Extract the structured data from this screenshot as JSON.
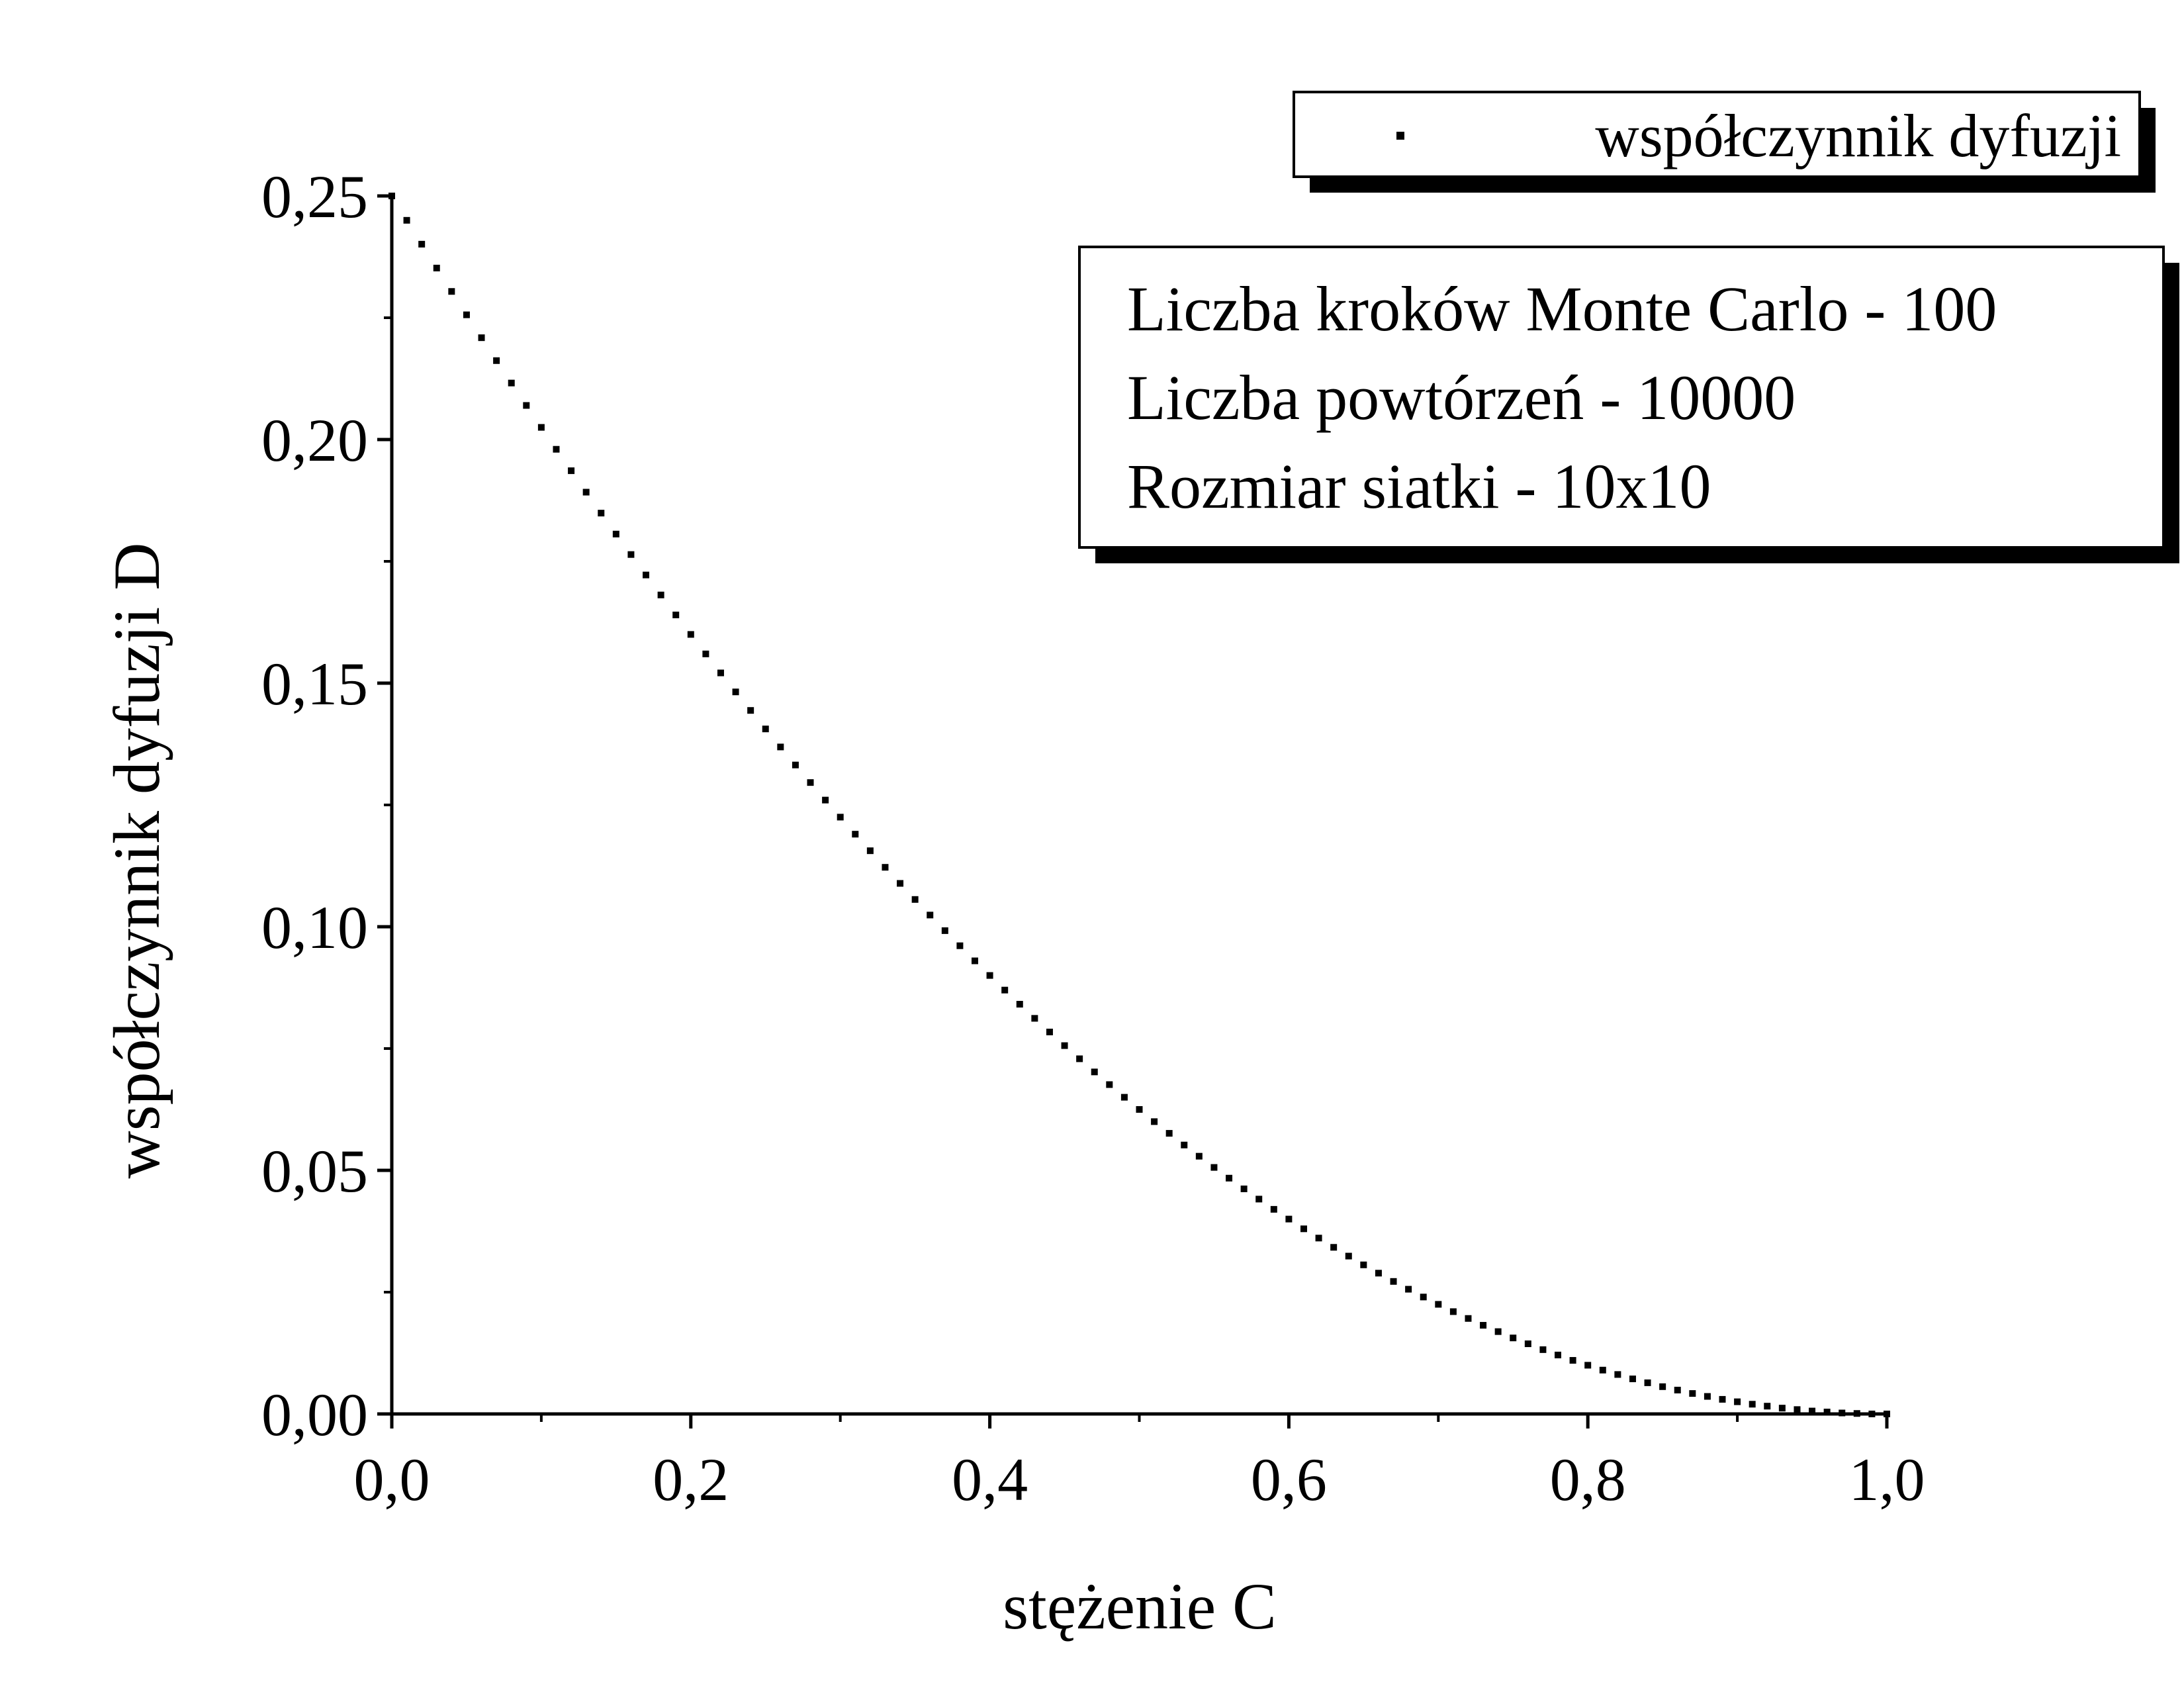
{
  "chart_data": {
    "type": "scatter",
    "xlabel": "stężenie C",
    "ylabel": "współczynnik dyfuzji D",
    "xlim": [
      0.0,
      1.0
    ],
    "ylim": [
      0.0,
      0.25
    ],
    "x_ticks": [
      "0,0",
      "0,2",
      "0,4",
      "0,6",
      "0,8",
      "1,0"
    ],
    "y_ticks": [
      "0,00",
      "0,05",
      "0,10",
      "0,15",
      "0,20",
      "0,25"
    ],
    "grid": false,
    "legend": {
      "position": "top-right",
      "entries": [
        "współczynnik dyfuzji"
      ]
    },
    "annotation_lines": [
      "Liczba kroków Monte Carlo - 100",
      "Liczba powtórzeń - 10000",
      "Rozmiar siatki - 10x10"
    ],
    "series": [
      {
        "name": "współczynnik dyfuzji",
        "marker": "square",
        "color": "#000000",
        "x": [
          0.0,
          0.01,
          0.02,
          0.03,
          0.04,
          0.05,
          0.06,
          0.07,
          0.08,
          0.09,
          0.1,
          0.11,
          0.12,
          0.13,
          0.14,
          0.15,
          0.16,
          0.17,
          0.18,
          0.19,
          0.2,
          0.21,
          0.22,
          0.23,
          0.24,
          0.25,
          0.26,
          0.27,
          0.28,
          0.29,
          0.3,
          0.31,
          0.32,
          0.33,
          0.34,
          0.35,
          0.36,
          0.37,
          0.38,
          0.39,
          0.4,
          0.41,
          0.42,
          0.43,
          0.44,
          0.45,
          0.46,
          0.47,
          0.48,
          0.49,
          0.5,
          0.51,
          0.52,
          0.53,
          0.54,
          0.55,
          0.56,
          0.57,
          0.58,
          0.59,
          0.6,
          0.61,
          0.62,
          0.63,
          0.64,
          0.65,
          0.66,
          0.67,
          0.68,
          0.69,
          0.7,
          0.71,
          0.72,
          0.73,
          0.74,
          0.75,
          0.76,
          0.77,
          0.78,
          0.79,
          0.8,
          0.81,
          0.82,
          0.83,
          0.84,
          0.85,
          0.86,
          0.87,
          0.88,
          0.89,
          0.9,
          0.91,
          0.92,
          0.93,
          0.94,
          0.95,
          0.96,
          0.97,
          0.98,
          0.99,
          1.0
        ],
        "y": [
          0.25,
          0.245,
          0.2401,
          0.2352,
          0.2304,
          0.2256,
          0.2209,
          0.2162,
          0.2116,
          0.207,
          0.2025,
          0.198,
          0.1936,
          0.1892,
          0.1849,
          0.1806,
          0.1764,
          0.1722,
          0.1681,
          0.164,
          0.16,
          0.156,
          0.1521,
          0.1482,
          0.1444,
          0.1406,
          0.1369,
          0.1332,
          0.1296,
          0.126,
          0.1225,
          0.119,
          0.1156,
          0.1122,
          0.1089,
          0.1056,
          0.1024,
          0.0992,
          0.0961,
          0.093,
          0.09,
          0.087,
          0.0841,
          0.0812,
          0.0784,
          0.0756,
          0.0729,
          0.0702,
          0.0676,
          0.065,
          0.0625,
          0.06,
          0.0576,
          0.0552,
          0.0529,
          0.0506,
          0.0484,
          0.0462,
          0.0441,
          0.042,
          0.04,
          0.038,
          0.0361,
          0.0342,
          0.0324,
          0.0306,
          0.0289,
          0.0272,
          0.0256,
          0.024,
          0.0225,
          0.021,
          0.0196,
          0.0182,
          0.0169,
          0.0156,
          0.0144,
          0.0132,
          0.0121,
          0.011,
          0.01,
          0.009,
          0.0081,
          0.0072,
          0.0064,
          0.0056,
          0.0049,
          0.0042,
          0.0036,
          0.003,
          0.0025,
          0.002,
          0.0016,
          0.0012,
          0.0009,
          0.0006,
          0.0004,
          0.0002,
          0.0001,
          0.0,
          0.0
        ]
      }
    ]
  }
}
